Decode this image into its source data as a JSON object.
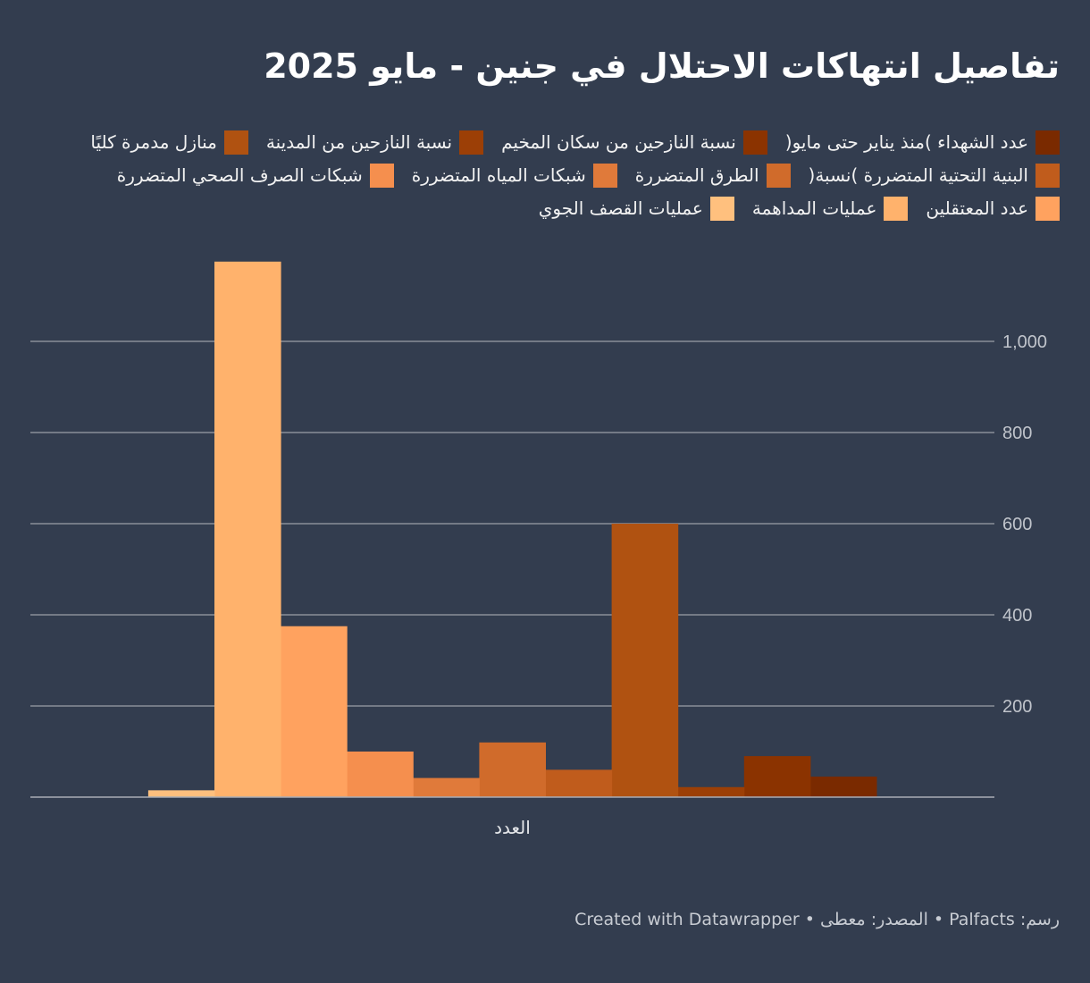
{
  "title": "تفاصيل انتهاكات الاحتلال في جنين - مايو 2025",
  "footer": "رسم: Palfacts • المصدر: معطى • Created with Datawrapper",
  "colors": {
    "background": "#333d4f",
    "grid": "#8a8f99",
    "axis_text": "#c0c4cb"
  },
  "chart_data": {
    "type": "bar",
    "categories": [
      "العدد"
    ],
    "ylim": [
      0,
      1180
    ],
    "yticks": [
      200,
      400,
      600,
      800,
      1000
    ],
    "ytick_labels": [
      "200",
      "400",
      "600",
      "800",
      "1,000"
    ],
    "grid": true,
    "legend_position": "top",
    "series": [
      {
        "name": "عدد الشهداء )منذ يناير حتى مايو(",
        "color": "#7a2a00",
        "values": [
          45
        ]
      },
      {
        "name": "نسبة النازحين من سكان المخيم",
        "color": "#8b3300",
        "values": [
          90
        ]
      },
      {
        "name": "نسبة النازحين من المدينة",
        "color": "#9c3f06",
        "values": [
          22
        ]
      },
      {
        "name": "منازل مدمرة كليًا",
        "color": "#b05211",
        "values": [
          600
        ]
      },
      {
        "name": "البنية التحتية المتضررة )نسبة(",
        "color": "#c05c1c",
        "values": [
          60
        ]
      },
      {
        "name": "الطرق المتضررة",
        "color": "#d06b2b",
        "values": [
          120
        ]
      },
      {
        "name": "شبكات المياه المتضررة",
        "color": "#e07a3a",
        "values": [
          42
        ]
      },
      {
        "name": "شبكات الصرف الصحي المتضررة",
        "color": "#f58f4e",
        "values": [
          100
        ]
      },
      {
        "name": "عدد المعتقلين",
        "color": "#ffa25f",
        "values": [
          375
        ]
      },
      {
        "name": "عمليات المداهمة",
        "color": "#ffb26c",
        "values": [
          1175
        ]
      },
      {
        "name": "عمليات القصف الجوي",
        "color": "#ffc07e",
        "values": [
          15
        ]
      }
    ]
  }
}
